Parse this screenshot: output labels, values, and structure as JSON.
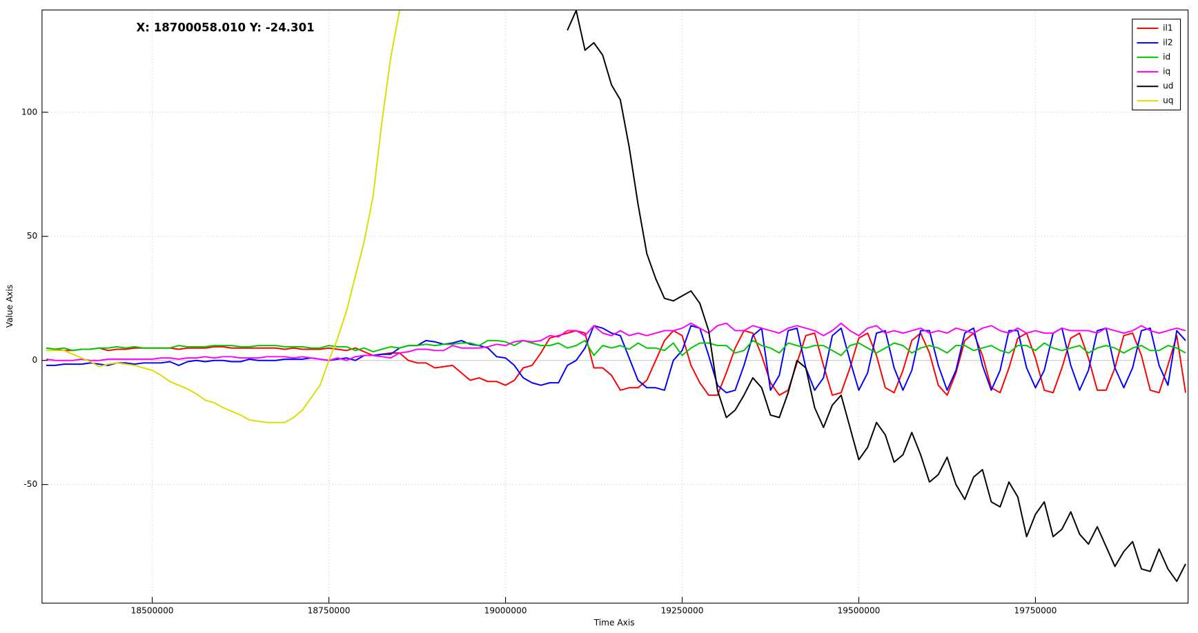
{
  "chart_data": {
    "type": "line",
    "annotation": "X: 18700058.010 Y: -24.301",
    "xlabel": "Time Axis",
    "ylabel": "Value Axis",
    "xlim": [
      18344000,
      19966000
    ],
    "ylim": [
      -97.8,
      141.2
    ],
    "xticks": [
      18500000,
      18750000,
      19000000,
      19250000,
      19500000,
      19750000
    ],
    "yticks": [
      -50,
      0,
      50,
      100
    ],
    "grid": true,
    "legend": "upper right",
    "x": [
      18350000,
      18362500,
      18375000,
      18387500,
      18400000,
      18412500,
      18425000,
      18437500,
      18450000,
      18462500,
      18475000,
      18487500,
      18500000,
      18512500,
      18525000,
      18537500,
      18550000,
      18562500,
      18575000,
      18587500,
      18600000,
      18612500,
      18625000,
      18637500,
      18650000,
      18662500,
      18675000,
      18687500,
      18700000,
      18712500,
      18725000,
      18737500,
      18750000,
      18762500,
      18775000,
      18787500,
      18800000,
      18812500,
      18825000,
      18837500,
      18850000,
      18862500,
      18875000,
      18887500,
      18900000,
      18912500,
      18925000,
      18937500,
      18950000,
      18962500,
      18975000,
      18987500,
      19000000,
      19012500,
      19025000,
      19037500,
      19050000,
      19062500,
      19075000,
      19087500,
      19100000,
      19112500,
      19125000,
      19137500,
      19150000,
      19162500,
      19175000,
      19187500,
      19200000,
      19212500,
      19225000,
      19237500,
      19250000,
      19262500,
      19275000,
      19287500,
      19300000,
      19312500,
      19325000,
      19337500,
      19350000,
      19362500,
      19375000,
      19387500,
      19400000,
      19412500,
      19425000,
      19437500,
      19450000,
      19462500,
      19475000,
      19487500,
      19500000,
      19512500,
      19525000,
      19537500,
      19550000,
      19562500,
      19575000,
      19587500,
      19600000,
      19612500,
      19625000,
      19637500,
      19650000,
      19662500,
      19675000,
      19687500,
      19700000,
      19712500,
      19725000,
      19737500,
      19750000,
      19762500,
      19775000,
      19787500,
      19800000,
      19812500,
      19825000,
      19837500,
      19850000,
      19862500,
      19875000,
      19887500,
      19900000,
      19912500,
      19925000,
      19937500,
      19950000,
      19962500
    ],
    "series": [
      {
        "name": "il1",
        "color": "#ff0000",
        "values": [
          5,
          4.5,
          4,
          4,
          4.5,
          4.5,
          5,
          4,
          4.5,
          4.5,
          5,
          5,
          5,
          5,
          5,
          4.5,
          5,
          5,
          5,
          5.5,
          5.5,
          5,
          5,
          5,
          5,
          5,
          5,
          4.5,
          5,
          4.5,
          4.5,
          4.5,
          5,
          4.5,
          4,
          5,
          3.5,
          2,
          2.5,
          3,
          3,
          0,
          -1,
          -1,
          -3,
          -2.5,
          -2,
          -5,
          -8,
          -7,
          -8.5,
          -8.5,
          -10,
          -8,
          -3,
          -2,
          3,
          9,
          10,
          11,
          12,
          11,
          -3,
          -3,
          -6,
          -12,
          -11,
          -11,
          -8,
          0,
          8,
          12,
          10,
          -2,
          -9,
          -14,
          -14,
          -5,
          5,
          12,
          11,
          2,
          -9,
          -14,
          -12,
          -1,
          10,
          11,
          -2,
          -14,
          -13,
          -3,
          9,
          11,
          2,
          -11,
          -13,
          -4,
          8,
          11,
          3,
          -10,
          -14,
          -5,
          8,
          11,
          2,
          -11,
          -13,
          -3,
          9,
          11,
          1,
          -12,
          -13,
          -3,
          9,
          11,
          1,
          -12,
          -12,
          -3,
          10,
          11,
          2,
          -12,
          -13,
          -2,
          10,
          -13
        ]
      },
      {
        "name": "il2",
        "color": "#0000ff",
        "values": [
          -2,
          -2,
          -1.5,
          -1.5,
          -1.5,
          -1,
          -1.5,
          -2,
          -1,
          -1,
          -1.5,
          -1,
          -1,
          -1,
          -0.5,
          -2,
          -0.5,
          0,
          -0.5,
          0,
          0,
          -0.5,
          -0.5,
          0.5,
          0,
          0,
          0,
          0.5,
          0.5,
          0.5,
          1,
          0.5,
          0,
          0.5,
          1,
          0,
          2,
          2,
          2.5,
          2.5,
          5,
          6,
          6,
          8,
          7.5,
          6.5,
          7,
          8,
          6.5,
          6,
          5,
          1.5,
          1,
          -2,
          -7,
          -9,
          -10,
          -9,
          -9,
          -2,
          0,
          5,
          14,
          13,
          11,
          10,
          1,
          -8,
          -11,
          -11,
          -12,
          0,
          4,
          14,
          13,
          2,
          -10,
          -13,
          -12,
          -2,
          10,
          13,
          -12,
          -6,
          12,
          13,
          -3,
          -12,
          -7,
          10,
          13,
          0,
          -12,
          -5,
          11,
          12,
          -3,
          -12,
          -4,
          12,
          12,
          -2,
          -12,
          -4,
          11,
          13,
          -2,
          -12,
          -4,
          12,
          12,
          -3,
          -11,
          -4,
          11,
          13,
          -2,
          -12,
          -4,
          12,
          13,
          -3,
          -11,
          -3,
          12,
          13,
          -2,
          -10,
          12,
          8
        ]
      },
      {
        "name": "id",
        "color": "#00c800",
        "values": [
          5,
          4.5,
          5,
          4,
          4.5,
          4.5,
          5,
          5,
          5.5,
          5,
          5.5,
          5,
          5,
          5,
          5,
          6,
          5.5,
          5.5,
          5.5,
          6,
          6,
          6,
          5.5,
          5.5,
          6,
          6,
          6,
          5.5,
          5.5,
          5.5,
          5,
          5,
          6,
          5.5,
          5.5,
          4,
          5,
          3.5,
          4.5,
          5.5,
          5,
          6,
          6,
          6.5,
          6,
          6.5,
          6.5,
          7,
          7,
          6,
          8,
          8,
          7.5,
          6,
          8,
          7,
          6,
          6,
          7,
          5,
          6,
          8,
          2,
          6,
          5,
          6,
          4.5,
          7,
          5,
          5,
          4,
          7,
          2,
          5,
          7,
          7,
          6,
          6,
          3,
          4,
          8,
          6,
          5,
          3,
          7,
          6,
          5,
          6,
          6,
          4,
          2,
          6,
          7,
          5,
          3,
          5,
          7,
          6,
          3,
          5,
          6,
          5,
          3,
          6,
          6,
          4,
          5,
          6,
          4,
          3,
          6,
          6,
          4,
          7,
          5,
          4,
          5,
          6,
          3,
          5,
          6,
          5,
          3,
          5,
          6,
          4,
          4,
          6,
          5,
          3
        ]
      },
      {
        "name": "iq",
        "color": "#ff00ff",
        "values": [
          0.5,
          0,
          0,
          0,
          0.5,
          0,
          0,
          0.5,
          0.5,
          0.5,
          0.5,
          0.5,
          0.5,
          1,
          1,
          0.5,
          1,
          1,
          1.5,
          1,
          1.5,
          1.5,
          1,
          1,
          1,
          1.5,
          1.5,
          1.5,
          1,
          1.5,
          1,
          0.5,
          0,
          1,
          0,
          1.5,
          2,
          2,
          1.5,
          1,
          3,
          3.5,
          4.5,
          4.5,
          4,
          4,
          6,
          5,
          5,
          5,
          5.5,
          6.5,
          6,
          7.5,
          8,
          7.5,
          8,
          10,
          9.5,
          12,
          12,
          10,
          14,
          11,
          10,
          12,
          10,
          11,
          10,
          11,
          12,
          12,
          13,
          15,
          13,
          11,
          14,
          15,
          12,
          12,
          14,
          13,
          12,
          11,
          13,
          14,
          13,
          12,
          10,
          12,
          15,
          12,
          10,
          13,
          14,
          11,
          12,
          11,
          12,
          13,
          11,
          12,
          11,
          13,
          12,
          11,
          13,
          14,
          12,
          11,
          13,
          11,
          12,
          11,
          11,
          13,
          12,
          12,
          12,
          11,
          13,
          12,
          11,
          12,
          14,
          12,
          11,
          12,
          13,
          12
        ]
      },
      {
        "name": "ud",
        "color": "#000000",
        "values": [
          null,
          null,
          null,
          null,
          null,
          null,
          null,
          null,
          null,
          null,
          null,
          null,
          null,
          null,
          null,
          null,
          null,
          null,
          null,
          null,
          null,
          null,
          null,
          null,
          null,
          null,
          null,
          null,
          null,
          null,
          null,
          null,
          null,
          null,
          null,
          null,
          null,
          null,
          null,
          null,
          null,
          null,
          null,
          null,
          null,
          null,
          null,
          null,
          null,
          null,
          null,
          null,
          null,
          null,
          null,
          null,
          null,
          null,
          null,
          133,
          141,
          125,
          128,
          123,
          111,
          105,
          86,
          63,
          43,
          33,
          25,
          24,
          26,
          28,
          23,
          12,
          -12,
          -23,
          -20,
          -14,
          -7,
          -11,
          -22,
          -23,
          -13,
          0,
          -3,
          -19,
          -27,
          -18,
          -14,
          -27,
          -40,
          -35,
          -25,
          -30,
          -41,
          -38,
          -29,
          -38,
          -49,
          -46,
          -39,
          -50,
          -56,
          -47,
          -44,
          -57,
          -59,
          -49,
          -55,
          -71,
          -62,
          -57,
          -71,
          -68,
          -61,
          -70,
          -74,
          -67,
          -75,
          -83,
          -77,
          -73,
          -84,
          -85,
          -76,
          -84,
          -89,
          -82
        ]
      },
      {
        "name": "uq",
        "color": "#dcdc00",
        "values": [
          4,
          4,
          4,
          2.5,
          1,
          -0.5,
          -2.5,
          -1.5,
          -1,
          -1.5,
          -2,
          -3,
          -4,
          -6,
          -8.5,
          -10,
          -11.5,
          -13.5,
          -16,
          -17,
          -19,
          -20.5,
          -22,
          -24,
          -24.5,
          -25,
          -25,
          -25,
          -23,
          -20,
          -15,
          -10,
          0,
          9,
          20,
          34,
          48,
          66,
          96,
          122,
          141,
          null,
          null,
          null,
          null,
          null,
          null,
          null,
          null,
          null,
          null,
          null,
          null,
          null,
          null,
          null,
          null,
          null,
          null,
          null,
          null,
          null,
          null,
          null,
          null,
          null,
          null,
          null,
          null,
          null,
          null,
          null,
          null,
          null,
          null,
          null,
          null,
          null,
          null,
          null,
          null,
          null,
          null,
          null,
          null,
          null,
          null,
          null,
          null,
          null,
          null,
          null,
          null,
          null,
          null,
          null,
          null,
          null,
          null,
          null,
          null,
          null,
          null,
          null,
          null,
          null,
          null,
          null,
          null,
          null,
          null,
          null,
          null,
          null,
          null,
          null,
          null,
          null,
          null,
          null,
          null,
          null,
          null,
          null,
          null,
          null,
          null,
          null,
          null,
          null
        ]
      }
    ]
  }
}
